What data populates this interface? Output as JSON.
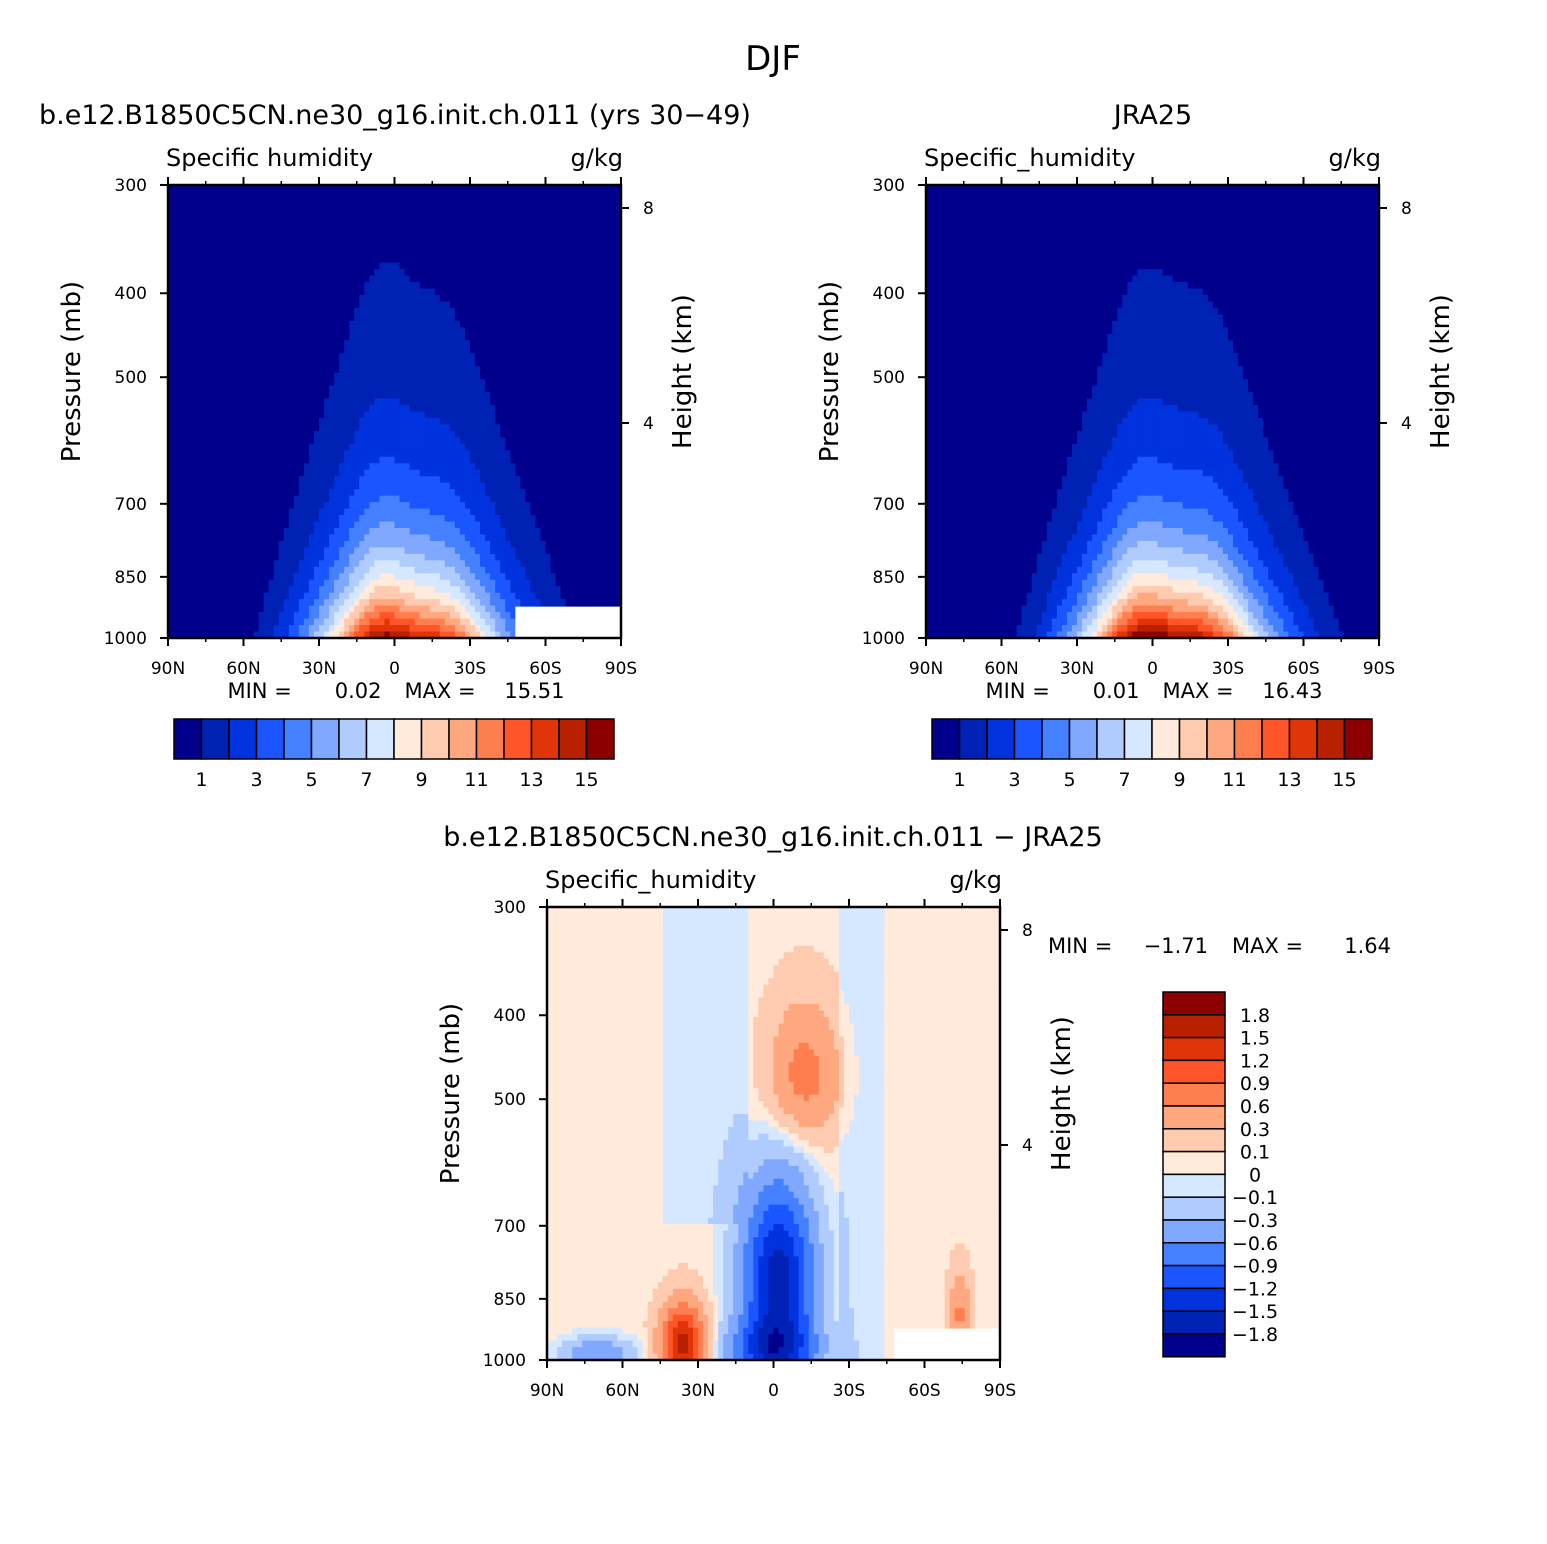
{
  "figure_title": "DJF",
  "colors": {
    "abs_levels": [
      "#00008c",
      "#0022b4",
      "#0033dd",
      "#1a55ff",
      "#4480ff",
      "#80a8ff",
      "#b0ccff",
      "#d6e8ff",
      "#ffeadc",
      "#ffcbb0",
      "#ffa880",
      "#ff7e50",
      "#ff5528",
      "#e03508",
      "#b82000",
      "#8c0000"
    ],
    "diff_levels": [
      "#00008c",
      "#0022b4",
      "#0033dd",
      "#1a55ff",
      "#4480ff",
      "#80a8ff",
      "#b0ccff",
      "#d6e8ff",
      "#ffeadc",
      "#ffcbb0",
      "#ffa880",
      "#ff7e50",
      "#ff5528",
      "#e03508",
      "#b82000",
      "#8c0000"
    ],
    "missing": "#ffffff"
  },
  "chart_data": [
    {
      "type": "heatmap",
      "panel_title": "b.e12.B1850C5CN.ne30_g16.init.ch.011 (yrs 30-49)",
      "left_string": "Specific humidity",
      "right_string": "g/kg",
      "ylabel": "Pressure (mb)",
      "y2label": "Height (km)",
      "x_ticks": [
        "90N",
        "60N",
        "30N",
        "0",
        "30S",
        "60S",
        "90S"
      ],
      "x_values": [
        90,
        60,
        30,
        0,
        -30,
        -60,
        -90
      ],
      "y_ticks": [
        "300",
        "400",
        "500",
        "700",
        "850",
        "1000"
      ],
      "y_values": [
        300,
        400,
        500,
        700,
        850,
        1000
      ],
      "y2_ticks": [
        "8",
        "4"
      ],
      "y2_values": [
        8,
        4
      ],
      "y_scale": "log",
      "ylim": [
        1000,
        300
      ],
      "xlim": [
        90,
        -90
      ],
      "min_label": "MIN =",
      "min_value": "0.02",
      "max_label": "MAX =",
      "max_value": "15.51",
      "colorbar_labels": [
        "1",
        "3",
        "5",
        "7",
        "9",
        "11",
        "13",
        "15"
      ],
      "levels": [
        1,
        2,
        3,
        4,
        5,
        6,
        7,
        8,
        9,
        10,
        11,
        12,
        13,
        14,
        15
      ],
      "field": {
        "peak": 15.51,
        "center_lat": -2,
        "lat_width": 27,
        "scale_height_hpa": 230,
        "floor": 0.02
      },
      "missing_region": {
        "lat_range": [
          -48,
          -90
        ],
        "p_range": [
          920,
          1000
        ]
      }
    },
    {
      "type": "heatmap",
      "panel_title": "JRA25",
      "left_string": "Specific_humidity",
      "right_string": "g/kg",
      "ylabel": "Pressure (mb)",
      "y2label": "Height (km)",
      "x_ticks": [
        "90N",
        "60N",
        "30N",
        "0",
        "30S",
        "60S",
        "90S"
      ],
      "x_values": [
        90,
        60,
        30,
        0,
        -30,
        -60,
        -90
      ],
      "y_ticks": [
        "300",
        "400",
        "500",
        "700",
        "850",
        "1000"
      ],
      "y_values": [
        300,
        400,
        500,
        700,
        850,
        1000
      ],
      "y2_ticks": [
        "8",
        "4"
      ],
      "y2_values": [
        8,
        4
      ],
      "y_scale": "log",
      "ylim": [
        1000,
        300
      ],
      "xlim": [
        90,
        -90
      ],
      "min_label": "MIN =",
      "min_value": "0.01",
      "max_label": "MAX =",
      "max_value": "16.43",
      "colorbar_labels": [
        "1",
        "3",
        "5",
        "7",
        "9",
        "11",
        "13",
        "15"
      ],
      "levels": [
        1,
        2,
        3,
        4,
        5,
        6,
        7,
        8,
        9,
        10,
        11,
        12,
        13,
        14,
        15
      ],
      "field": {
        "peak": 16.43,
        "center_lat": -4,
        "lat_width": 27,
        "scale_height_hpa": 225,
        "floor": 0.01
      }
    },
    {
      "type": "heatmap",
      "panel_title": "b.e12.B1850C5CN.ne30_g16.init.ch.011 - JRA25",
      "left_string": "Specific_humidity",
      "right_string": "g/kg",
      "ylabel": "Pressure (mb)",
      "y2label": "Height (km)",
      "x_ticks": [
        "90N",
        "60N",
        "30N",
        "0",
        "30S",
        "60S",
        "90S"
      ],
      "x_values": [
        90,
        60,
        30,
        0,
        -30,
        -60,
        -90
      ],
      "y_ticks": [
        "300",
        "400",
        "500",
        "700",
        "850",
        "1000"
      ],
      "y_values": [
        300,
        400,
        500,
        700,
        850,
        1000
      ],
      "y2_ticks": [
        "8",
        "4"
      ],
      "y2_values": [
        8,
        4
      ],
      "y_scale": "log",
      "ylim": [
        1000,
        300
      ],
      "xlim": [
        90,
        -90
      ],
      "min_label": "MIN =",
      "min_value": "-1.71",
      "max_label": "MAX =",
      "max_value": "1.64",
      "colorbar_labels": [
        "1.8",
        "1.5",
        "1.2",
        "0.9",
        "0.6",
        "0.3",
        "0.1",
        "0",
        "-0.1",
        "-0.3",
        "-0.6",
        "-0.9",
        "-1.2",
        "-1.5",
        "-1.8"
      ],
      "levels": [
        -1.8,
        -1.5,
        -1.2,
        -0.9,
        -0.6,
        -0.3,
        -0.1,
        0,
        0.1,
        0.3,
        0.6,
        0.9,
        1.2,
        1.5,
        1.8
      ],
      "features": [
        {
          "lat": -2,
          "p": 800,
          "amp": -1.7,
          "wlat": 10,
          "wp": 130
        },
        {
          "lat": 0,
          "p": 980,
          "amp": -1.2,
          "wlat": 12,
          "wp": 60
        },
        {
          "lat": 36,
          "p": 960,
          "amp": 1.6,
          "wlat": 6,
          "wp": 70
        },
        {
          "lat": -12,
          "p": 470,
          "amp": 0.7,
          "wlat": 10,
          "wp": 60
        },
        {
          "lat": -74,
          "p": 890,
          "amp": 0.6,
          "wlat": 3,
          "wp": 70
        },
        {
          "lat": 70,
          "p": 985,
          "amp": -0.6,
          "wlat": 10,
          "wp": 30
        }
      ],
      "missing_region": {
        "lat_range": [
          -48,
          -90
        ],
        "p_range": [
          920,
          1000
        ]
      }
    }
  ]
}
